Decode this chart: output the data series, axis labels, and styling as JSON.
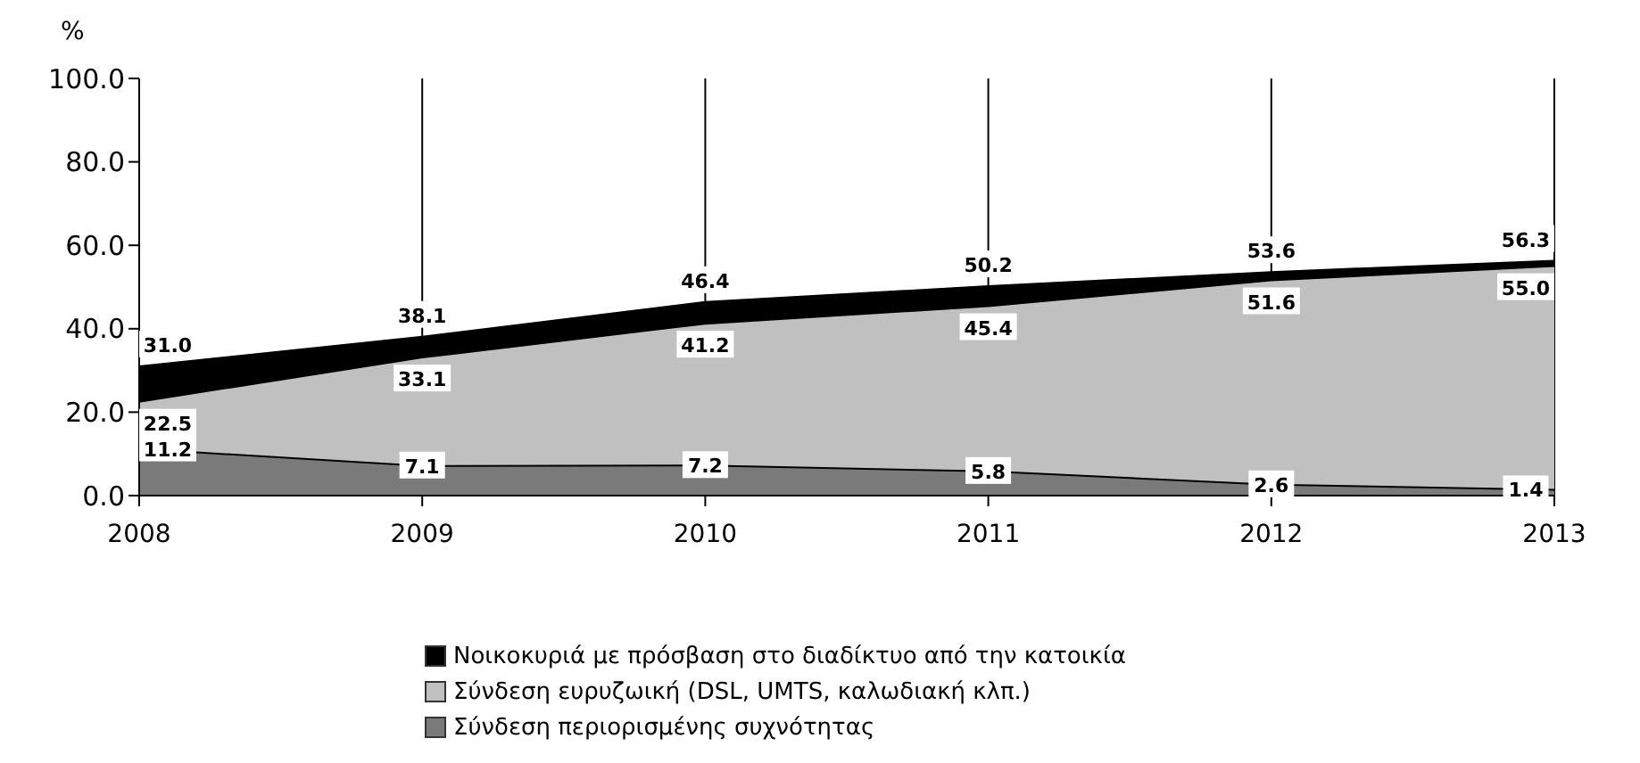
{
  "chart_data": {
    "type": "area",
    "ylabel": "%",
    "categories": [
      "2008",
      "2009",
      "2010",
      "2011",
      "2012",
      "2013"
    ],
    "series": [
      {
        "name": "Νοικοκυριά με πρόσβαση στο διαδίκτυο από την κατοικία",
        "color": "#000000",
        "values": [
          31.0,
          38.1,
          46.4,
          50.2,
          53.6,
          56.3
        ],
        "value_labels": [
          "31.0",
          "38.1",
          "46.4",
          "50.2",
          "53.6",
          "56.3"
        ]
      },
      {
        "name": "Σύνδεση ευρυζωική (DSL, UMTS, καλωδιακή κλπ.)",
        "color": "#c0c0c0",
        "values": [
          22.5,
          33.1,
          41.2,
          45.4,
          51.6,
          55.0
        ],
        "value_labels": [
          "22.5",
          "33.1",
          "41.2",
          "45.4",
          "51.6",
          "55.0"
        ]
      },
      {
        "name": "Σύνδεση περιορισμένης συχνότητας",
        "color": "#7a7a7a",
        "values": [
          11.2,
          7.1,
          7.2,
          5.8,
          2.6,
          1.4
        ],
        "value_labels": [
          "11.2",
          "7.1",
          "7.2",
          "5.8",
          "2.6",
          "1.4"
        ]
      }
    ],
    "ylim": [
      0,
      100
    ],
    "yticks": [
      {
        "value": 0,
        "label": "0.0"
      },
      {
        "value": 20,
        "label": "20.0"
      },
      {
        "value": 40,
        "label": "40.0"
      },
      {
        "value": 60,
        "label": "60.0"
      },
      {
        "value": 80,
        "label": "80.0"
      },
      {
        "value": 100,
        "label": "100.0"
      }
    ],
    "grid": "x",
    "legend": "bottom"
  }
}
